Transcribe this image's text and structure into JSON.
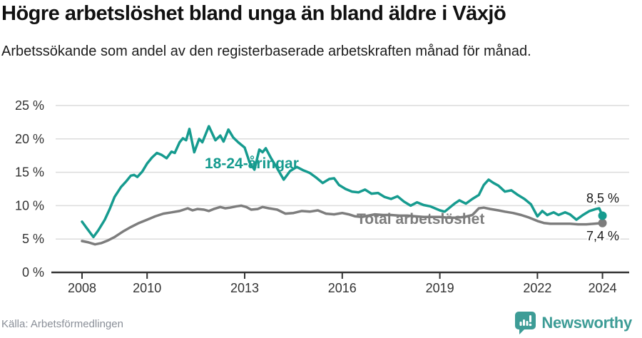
{
  "chart_data": {
    "type": "line",
    "title": "Högre arbetslöshet bland unga än bland äldre i Växjö",
    "subtitle": "Arbetssökande som andel av den registerbaserade arbetskraften månad för månad.",
    "grid": true,
    "grid_color": "#dcdcdc",
    "axis_color": "#333333",
    "legend_position": "inline-labels",
    "x_range": [
      2008,
      2024.1
    ],
    "ylim": [
      0,
      25
    ],
    "y_axis": {
      "unit": "%",
      "ticks": [
        {
          "v": 0,
          "label": "0 %"
        },
        {
          "v": 5,
          "label": "5 %"
        },
        {
          "v": 10,
          "label": "10 %"
        },
        {
          "v": 15,
          "label": "15 %"
        },
        {
          "v": 20,
          "label": "20 %"
        },
        {
          "v": 25,
          "label": "25 %"
        }
      ]
    },
    "x_axis": {
      "ticks": [
        {
          "v": 2008,
          "label": "2008"
        },
        {
          "v": 2010,
          "label": "2010"
        },
        {
          "v": 2013,
          "label": "2013"
        },
        {
          "v": 2016,
          "label": "2016"
        },
        {
          "v": 2019,
          "label": "2019"
        },
        {
          "v": 2022,
          "label": "2022"
        },
        {
          "v": 2024,
          "label": "2024"
        }
      ]
    },
    "series": [
      {
        "id": "total",
        "label": "Total arbetslöshet",
        "color": "#7d7d7d",
        "end_value": 7.4,
        "end_label": "7,4 %",
        "points": [
          [
            2008.0,
            4.7
          ],
          [
            2008.2,
            4.5
          ],
          [
            2008.4,
            4.2
          ],
          [
            2008.6,
            4.4
          ],
          [
            2008.8,
            4.8
          ],
          [
            2009.0,
            5.3
          ],
          [
            2009.25,
            6.1
          ],
          [
            2009.5,
            6.8
          ],
          [
            2009.75,
            7.4
          ],
          [
            2010.0,
            7.9
          ],
          [
            2010.25,
            8.4
          ],
          [
            2010.5,
            8.8
          ],
          [
            2010.75,
            9.0
          ],
          [
            2011.0,
            9.2
          ],
          [
            2011.25,
            9.6
          ],
          [
            2011.4,
            9.3
          ],
          [
            2011.55,
            9.5
          ],
          [
            2011.75,
            9.4
          ],
          [
            2011.9,
            9.2
          ],
          [
            2012.05,
            9.5
          ],
          [
            2012.25,
            9.8
          ],
          [
            2012.4,
            9.6
          ],
          [
            2012.55,
            9.7
          ],
          [
            2012.75,
            9.9
          ],
          [
            2012.9,
            10.0
          ],
          [
            2013.05,
            9.8
          ],
          [
            2013.2,
            9.4
          ],
          [
            2013.4,
            9.5
          ],
          [
            2013.55,
            9.8
          ],
          [
            2013.75,
            9.6
          ],
          [
            2014.0,
            9.4
          ],
          [
            2014.25,
            8.8
          ],
          [
            2014.5,
            8.9
          ],
          [
            2014.75,
            9.2
          ],
          [
            2015.0,
            9.1
          ],
          [
            2015.25,
            9.3
          ],
          [
            2015.5,
            8.8
          ],
          [
            2015.75,
            8.7
          ],
          [
            2016.0,
            8.9
          ],
          [
            2016.2,
            8.7
          ],
          [
            2016.4,
            8.4
          ],
          [
            2016.6,
            8.3
          ],
          [
            2016.8,
            8.5
          ],
          [
            2017.0,
            8.7
          ],
          [
            2017.25,
            8.6
          ],
          [
            2017.5,
            8.6
          ],
          [
            2017.75,
            8.5
          ],
          [
            2018.0,
            8.5
          ],
          [
            2018.25,
            8.4
          ],
          [
            2018.5,
            8.3
          ],
          [
            2018.75,
            8.3
          ],
          [
            2019.0,
            8.3
          ],
          [
            2019.25,
            8.2
          ],
          [
            2019.5,
            8.2
          ],
          [
            2019.75,
            8.3
          ],
          [
            2020.0,
            8.6
          ],
          [
            2020.2,
            9.6
          ],
          [
            2020.35,
            9.7
          ],
          [
            2020.55,
            9.5
          ],
          [
            2020.8,
            9.3
          ],
          [
            2021.0,
            9.1
          ],
          [
            2021.25,
            8.9
          ],
          [
            2021.5,
            8.6
          ],
          [
            2021.75,
            8.2
          ],
          [
            2022.0,
            7.7
          ],
          [
            2022.2,
            7.4
          ],
          [
            2022.4,
            7.3
          ],
          [
            2022.6,
            7.3
          ],
          [
            2022.8,
            7.3
          ],
          [
            2023.0,
            7.3
          ],
          [
            2023.25,
            7.2
          ],
          [
            2023.5,
            7.2
          ],
          [
            2023.75,
            7.3
          ],
          [
            2024.0,
            7.4
          ]
        ]
      },
      {
        "id": "youth",
        "label": "18-24-åringar",
        "color": "#169b8f",
        "end_value": 8.5,
        "end_label": "8,5 %",
        "points": [
          [
            2008.0,
            7.6
          ],
          [
            2008.15,
            6.6
          ],
          [
            2008.35,
            5.3
          ],
          [
            2008.5,
            6.3
          ],
          [
            2008.7,
            7.9
          ],
          [
            2008.85,
            9.5
          ],
          [
            2009.0,
            11.3
          ],
          [
            2009.2,
            12.8
          ],
          [
            2009.35,
            13.6
          ],
          [
            2009.5,
            14.5
          ],
          [
            2009.6,
            14.6
          ],
          [
            2009.7,
            14.3
          ],
          [
            2009.85,
            15.1
          ],
          [
            2010.0,
            16.3
          ],
          [
            2010.15,
            17.2
          ],
          [
            2010.3,
            17.9
          ],
          [
            2010.45,
            17.6
          ],
          [
            2010.6,
            17.1
          ],
          [
            2010.75,
            18.1
          ],
          [
            2010.85,
            17.9
          ],
          [
            2011.0,
            19.5
          ],
          [
            2011.1,
            20.1
          ],
          [
            2011.2,
            19.8
          ],
          [
            2011.3,
            21.5
          ],
          [
            2011.45,
            18.0
          ],
          [
            2011.6,
            20.0
          ],
          [
            2011.7,
            19.5
          ],
          [
            2011.9,
            21.9
          ],
          [
            2012.1,
            19.8
          ],
          [
            2012.25,
            20.5
          ],
          [
            2012.35,
            19.6
          ],
          [
            2012.5,
            21.4
          ],
          [
            2012.65,
            20.2
          ],
          [
            2012.8,
            19.5
          ],
          [
            2013.0,
            18.7
          ],
          [
            2013.15,
            16.5
          ],
          [
            2013.3,
            15.4
          ],
          [
            2013.45,
            18.4
          ],
          [
            2013.55,
            18.0
          ],
          [
            2013.65,
            18.6
          ],
          [
            2013.8,
            17.2
          ],
          [
            2014.0,
            15.6
          ],
          [
            2014.2,
            13.9
          ],
          [
            2014.4,
            15.2
          ],
          [
            2014.6,
            15.8
          ],
          [
            2014.8,
            15.3
          ],
          [
            2015.0,
            14.9
          ],
          [
            2015.2,
            14.2
          ],
          [
            2015.4,
            13.4
          ],
          [
            2015.6,
            14.0
          ],
          [
            2015.75,
            14.1
          ],
          [
            2015.9,
            13.1
          ],
          [
            2016.1,
            12.5
          ],
          [
            2016.3,
            12.1
          ],
          [
            2016.5,
            12.0
          ],
          [
            2016.7,
            12.4
          ],
          [
            2016.9,
            11.8
          ],
          [
            2017.1,
            11.9
          ],
          [
            2017.3,
            11.3
          ],
          [
            2017.5,
            11.0
          ],
          [
            2017.7,
            11.4
          ],
          [
            2017.9,
            10.6
          ],
          [
            2018.1,
            10.0
          ],
          [
            2018.3,
            10.5
          ],
          [
            2018.5,
            10.1
          ],
          [
            2018.7,
            9.9
          ],
          [
            2019.0,
            9.3
          ],
          [
            2019.15,
            9.1
          ],
          [
            2019.3,
            9.7
          ],
          [
            2019.45,
            10.3
          ],
          [
            2019.6,
            10.8
          ],
          [
            2019.8,
            10.3
          ],
          [
            2020.0,
            11.0
          ],
          [
            2020.2,
            11.6
          ],
          [
            2020.35,
            13.1
          ],
          [
            2020.5,
            13.9
          ],
          [
            2020.65,
            13.4
          ],
          [
            2020.8,
            13.0
          ],
          [
            2021.0,
            12.1
          ],
          [
            2021.2,
            12.3
          ],
          [
            2021.4,
            11.6
          ],
          [
            2021.6,
            11.0
          ],
          [
            2021.8,
            10.2
          ],
          [
            2022.0,
            8.4
          ],
          [
            2022.15,
            9.2
          ],
          [
            2022.3,
            8.6
          ],
          [
            2022.5,
            9.0
          ],
          [
            2022.65,
            8.6
          ],
          [
            2022.85,
            9.0
          ],
          [
            2023.0,
            8.7
          ],
          [
            2023.2,
            7.9
          ],
          [
            2023.4,
            8.6
          ],
          [
            2023.6,
            9.2
          ],
          [
            2023.8,
            9.5
          ],
          [
            2023.9,
            9.6
          ],
          [
            2024.0,
            8.5
          ]
        ]
      }
    ]
  },
  "footer": {
    "source": "Källa: Arbetsförmedlingen",
    "brand_name": "Newsworthy"
  },
  "colors": {
    "accent_teal": "#169b8f",
    "logo_teal": "#3d9c96",
    "line_gray": "#7d7d7d",
    "grid_gray": "#dcdcdc",
    "text_dark": "#111111"
  }
}
